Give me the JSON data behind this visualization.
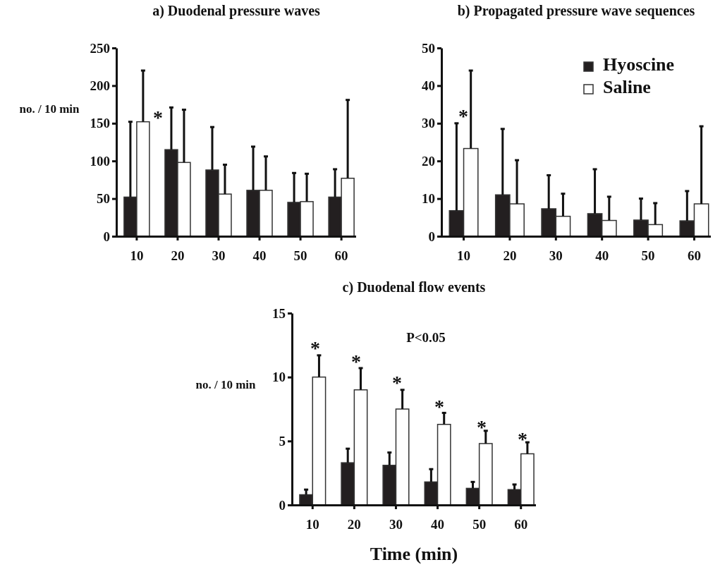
{
  "chart_data": [
    {
      "type": "bar",
      "title": "a) Duodenal pressure waves",
      "ylabel": "no. / 10 min",
      "categories": [
        "10",
        "20",
        "30",
        "40",
        "50",
        "60"
      ],
      "ylim": [
        0,
        250
      ],
      "yticks": [
        0,
        50,
        100,
        150,
        200,
        250
      ],
      "annotations": [
        "*"
      ],
      "series": [
        {
          "color": "#231f20",
          "values": [
            52,
            115,
            88,
            61,
            45,
            52
          ],
          "errors": [
            [
              52,
              152
            ],
            [
              115,
              171
            ],
            [
              88,
              145
            ],
            [
              61,
              119
            ],
            [
              45,
              84
            ],
            [
              52,
              89
            ]
          ]
        },
        {
          "color": "#ffffff",
          "values": [
            152,
            98,
            56,
            61,
            46,
            77
          ],
          "errors": [
            [
              152,
              220
            ],
            [
              98,
              168
            ],
            [
              56,
              95
            ],
            [
              61,
              106
            ],
            [
              46,
              83
            ],
            [
              77,
              181
            ]
          ]
        }
      ]
    },
    {
      "type": "bar",
      "title": "b) Propagated pressure wave sequences",
      "categories": [
        "10",
        "20",
        "30",
        "40",
        "50",
        "60"
      ],
      "ylim": [
        0,
        50
      ],
      "yticks": [
        0,
        10,
        20,
        30,
        40,
        50
      ],
      "legend": "top right",
      "annotations": [
        "*"
      ],
      "series": [
        {
          "name": "Hyoscine",
          "color": "#231f20",
          "values": [
            6.8,
            11,
            7.3,
            6,
            4.3,
            4.1
          ],
          "errors": [
            [
              6.8,
              30
            ],
            [
              11,
              28.5
            ],
            [
              7.3,
              16.2
            ],
            [
              6,
              17.8
            ],
            [
              4.3,
              10
            ],
            [
              4.1,
              12
            ]
          ]
        },
        {
          "name": "Saline",
          "color": "#ffffff",
          "values": [
            23.3,
            8.6,
            5.3,
            4.2,
            3.1,
            8.6
          ],
          "errors": [
            [
              23.3,
              44
            ],
            [
              8.6,
              20.2
            ],
            [
              5.3,
              11.3
            ],
            [
              4.2,
              10.5
            ],
            [
              3.1,
              8.8
            ],
            [
              8.6,
              29.2
            ]
          ]
        }
      ]
    },
    {
      "type": "bar",
      "title": "c) Duodenal flow events",
      "ylabel": "no. / 10 min",
      "xlabel": "Time (min)",
      "categories": [
        "10",
        "20",
        "30",
        "40",
        "50",
        "60"
      ],
      "ylim": [
        0,
        15
      ],
      "yticks": [
        0,
        5,
        10,
        15
      ],
      "annotations": [
        "P<0.05",
        "*",
        "*",
        "*",
        "*",
        "*",
        "*"
      ],
      "series": [
        {
          "color": "#231f20",
          "values": [
            0.8,
            3.3,
            3.1,
            1.8,
            1.3,
            1.2
          ],
          "errors": [
            [
              0.8,
              1.2
            ],
            [
              3.3,
              4.4
            ],
            [
              3.1,
              4.1
            ],
            [
              1.8,
              2.8
            ],
            [
              1.3,
              1.8
            ],
            [
              1.2,
              1.6
            ]
          ]
        },
        {
          "color": "#ffffff",
          "values": [
            10,
            9,
            7.5,
            6.3,
            4.8,
            4.0
          ],
          "errors": [
            [
              10,
              11.7
            ],
            [
              9,
              10.7
            ],
            [
              7.5,
              9.0
            ],
            [
              6.3,
              7.2
            ],
            [
              4.8,
              5.8
            ],
            [
              4.0,
              4.9
            ]
          ]
        }
      ]
    }
  ]
}
